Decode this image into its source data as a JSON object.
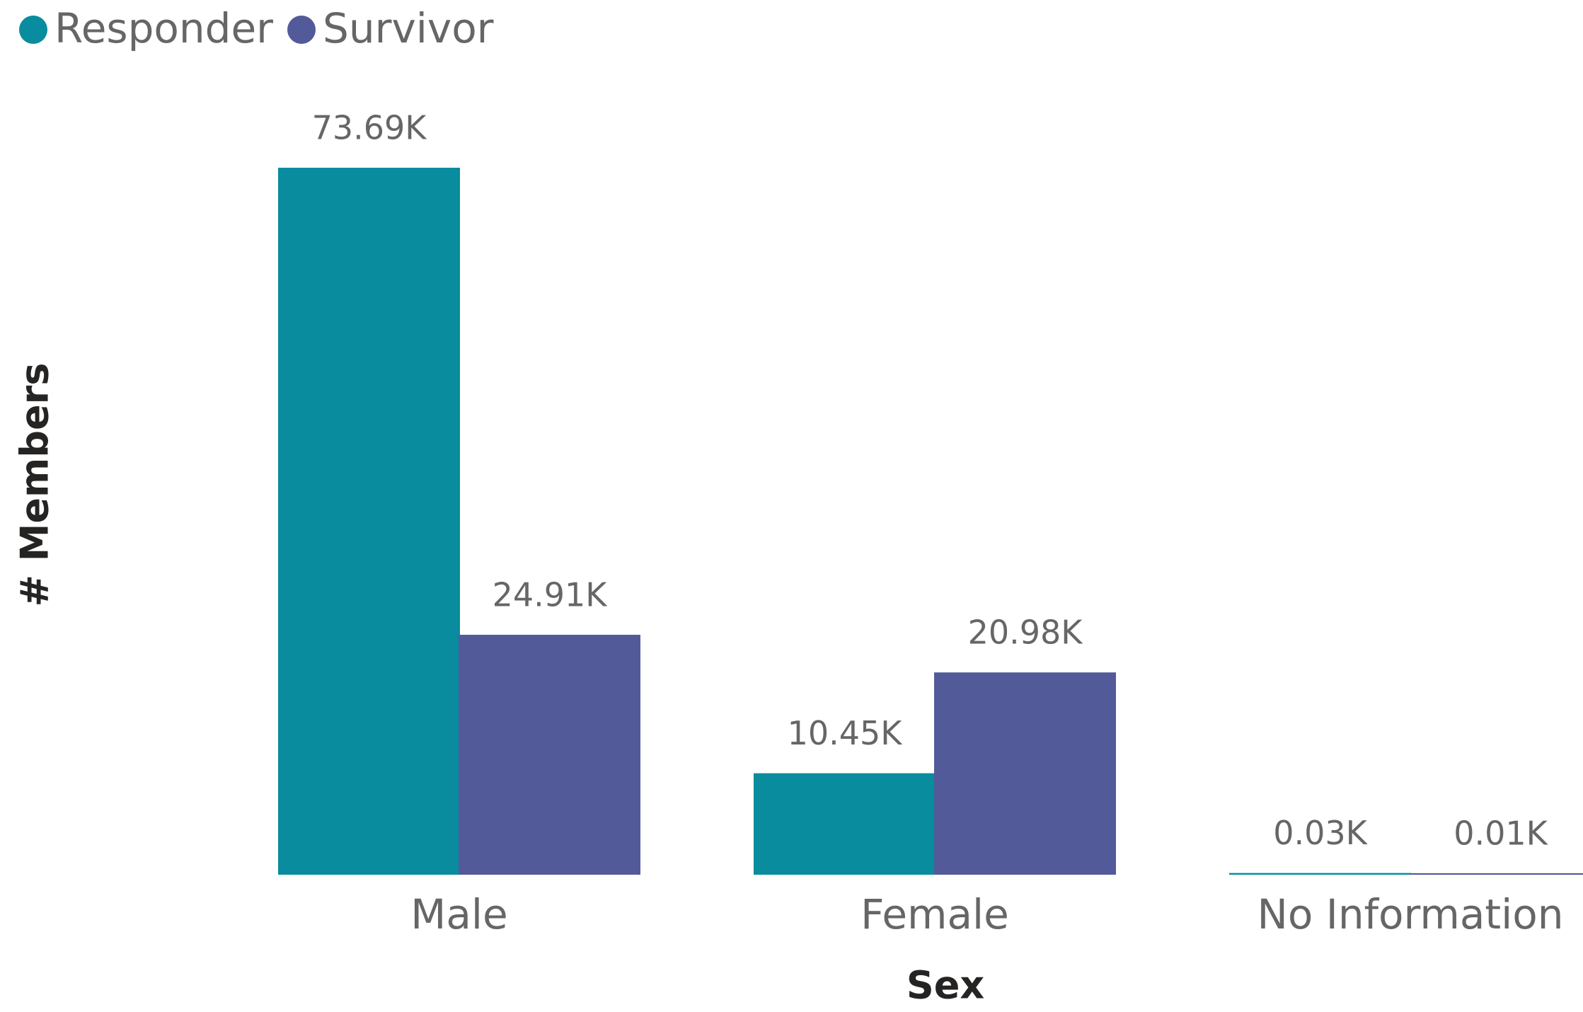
{
  "chart_data": {
    "type": "bar",
    "categories": [
      "Male",
      "Female",
      "No Information"
    ],
    "series": [
      {
        "name": "Responder",
        "color": "#088c9e",
        "values": [
          73.69,
          10.45,
          0.03
        ],
        "value_labels": [
          "73.69K",
          "10.45K",
          "0.03K"
        ]
      },
      {
        "name": "Survivor",
        "color": "#535a9a",
        "values": [
          24.91,
          20.98,
          0.01
        ],
        "value_labels": [
          "24.91K",
          "20.98K",
          "0.01K"
        ]
      }
    ],
    "xlabel": "Sex",
    "ylabel": "# Members",
    "legend": "top-left"
  }
}
